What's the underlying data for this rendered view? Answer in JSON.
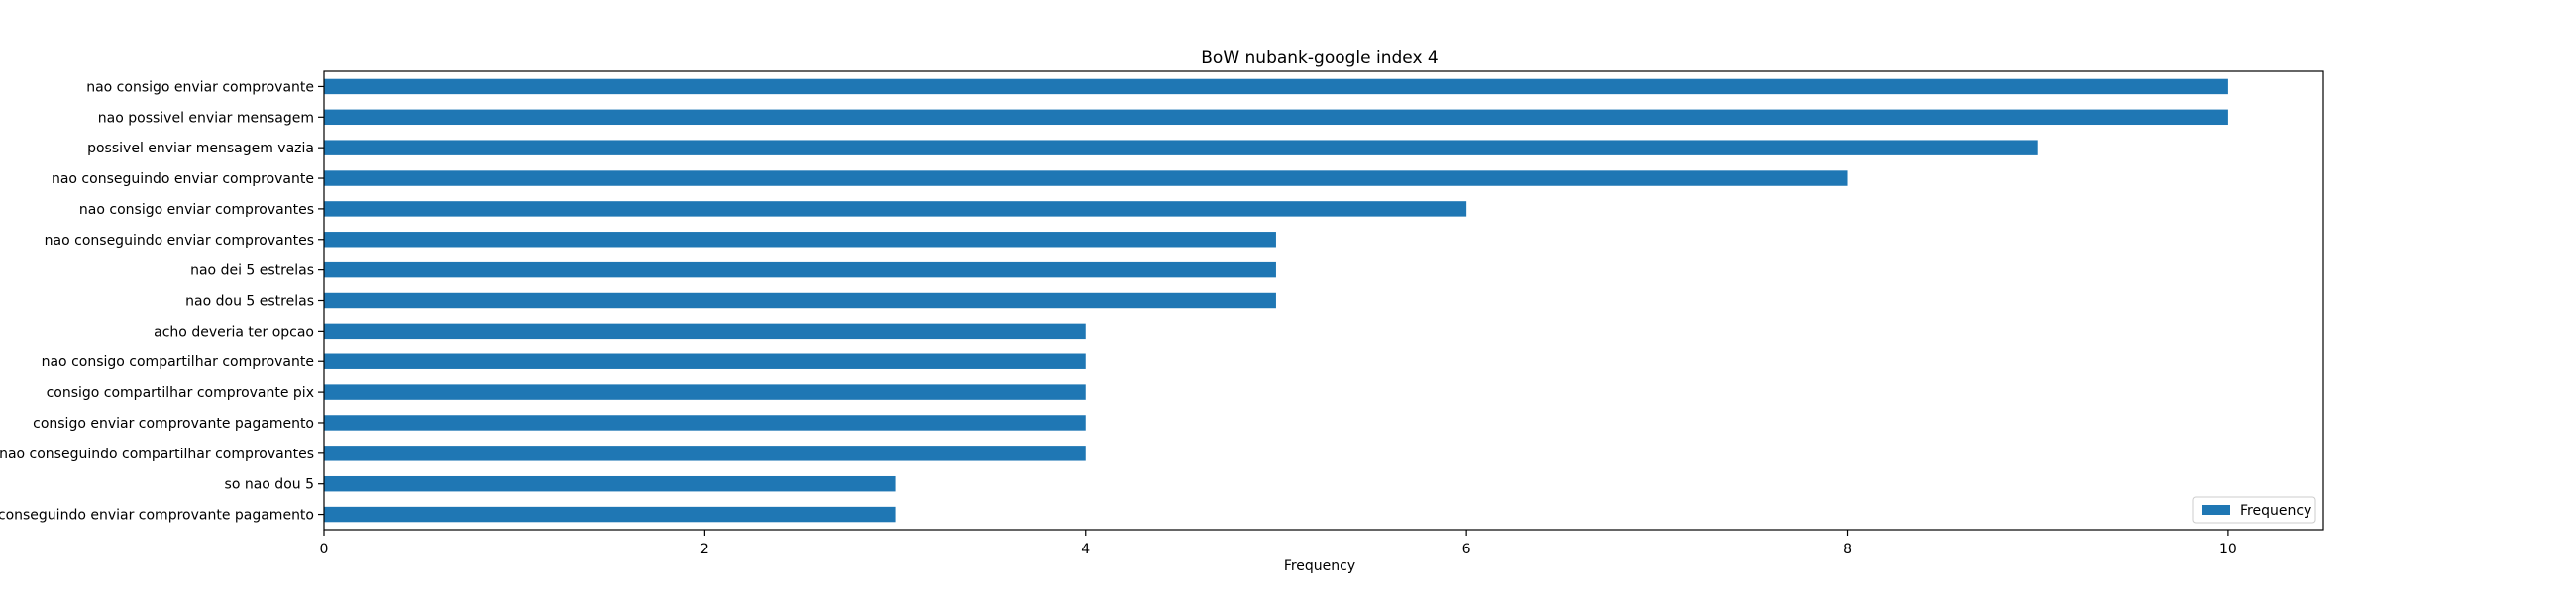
{
  "chart_data": {
    "type": "bar",
    "orientation": "horizontal",
    "title": "BoW nubank-google index 4",
    "xlabel": "Frequency",
    "ylabel": "",
    "xlim": [
      0,
      10.5
    ],
    "xticks": [
      0,
      2,
      4,
      6,
      8,
      10
    ],
    "categories": [
      "nao consigo enviar comprovante",
      "nao possivel enviar mensagem",
      "possivel enviar mensagem vazia",
      "nao conseguindo enviar comprovante",
      "nao consigo enviar comprovantes",
      "nao conseguindo enviar comprovantes",
      "nao dei 5 estrelas",
      "nao dou 5 estrelas",
      "acho deveria ter opcao",
      "nao consigo compartilhar comprovante",
      "consigo compartilhar comprovante pix",
      "consigo enviar comprovante pagamento",
      "nao conseguindo compartilhar comprovantes",
      "so nao dou 5",
      "conseguindo enviar comprovante pagamento"
    ],
    "series": [
      {
        "name": "Frequency",
        "color": "#1f77b4",
        "values": [
          10,
          10,
          9,
          8,
          6,
          5,
          5,
          5,
          4,
          4,
          4,
          4,
          4,
          3,
          3
        ]
      }
    ],
    "grid": false,
    "legend": {
      "position": "bottom-right",
      "entries": [
        "Frequency"
      ]
    }
  }
}
